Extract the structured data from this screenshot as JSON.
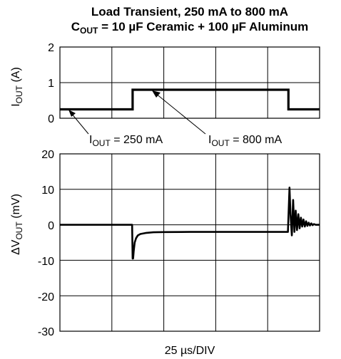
{
  "chart_data": {
    "type": "line",
    "title_line1": "Load Transient, 250 mA to 800 mA",
    "title_line2": {
      "pre": "C",
      "sub": "OUT",
      "post": " = 10 µF Ceramic + 100 µF Aluminum"
    },
    "xlabel": "25 µs/DIV",
    "x_divisions": 10,
    "grid": true,
    "top_panel": {
      "ylabel": {
        "pre": "I",
        "sub": "OUT",
        "post": " (A)"
      },
      "ylim": [
        0,
        2
      ],
      "yticks": [
        "2",
        "1",
        "0"
      ],
      "series": {
        "x_div": [
          0,
          2.8,
          2.8,
          8.8,
          8.8,
          15.2
        ],
        "values": [
          0.25,
          0.25,
          0.8,
          0.8,
          0.25,
          0.25
        ]
      },
      "annotations": [
        {
          "pre": "I",
          "sub": "OUT",
          "post": " = 250 mA"
        },
        {
          "pre": "I",
          "sub": "OUT",
          "post": " = 800 mA"
        }
      ]
    },
    "bottom_panel": {
      "ylabel": {
        "pre": "ΔV",
        "sub": "OUT",
        "post": " (mV)"
      },
      "ylim": [
        -30,
        20
      ],
      "yticks": [
        "20",
        "10",
        "0",
        "-10",
        "-20",
        "-30"
      ],
      "series": {
        "x_div": [
          0,
          2.78,
          2.8,
          2.82,
          2.84,
          2.88,
          2.93,
          3.0,
          3.1,
          3.3,
          3.6,
          4.0,
          5.0,
          8.78,
          8.8,
          8.84,
          8.88,
          8.93,
          8.98,
          9.03,
          9.08,
          9.13,
          9.18,
          9.23,
          9.28,
          9.33,
          9.38,
          9.43,
          9.48,
          9.53,
          9.58,
          9.63,
          9.68,
          9.73,
          9.78,
          9.85,
          9.95,
          10.1,
          15.2
        ],
        "values": [
          0,
          0,
          -9.5,
          -9.5,
          -7.5,
          -5,
          -3.8,
          -3,
          -2.6,
          -2.3,
          -2.1,
          -2.05,
          -2,
          -2,
          2,
          10.5,
          3,
          -3,
          7,
          -2,
          4,
          -1.5,
          3,
          -1,
          2,
          -0.5,
          1.5,
          -0.5,
          1,
          -0.3,
          0.6,
          -0.2,
          0.4,
          -0.1,
          0.2,
          0,
          0,
          0,
          0
        ]
      }
    }
  },
  "colors": {
    "line": "#000000",
    "grid": "#000000",
    "background": "#ffffff"
  }
}
